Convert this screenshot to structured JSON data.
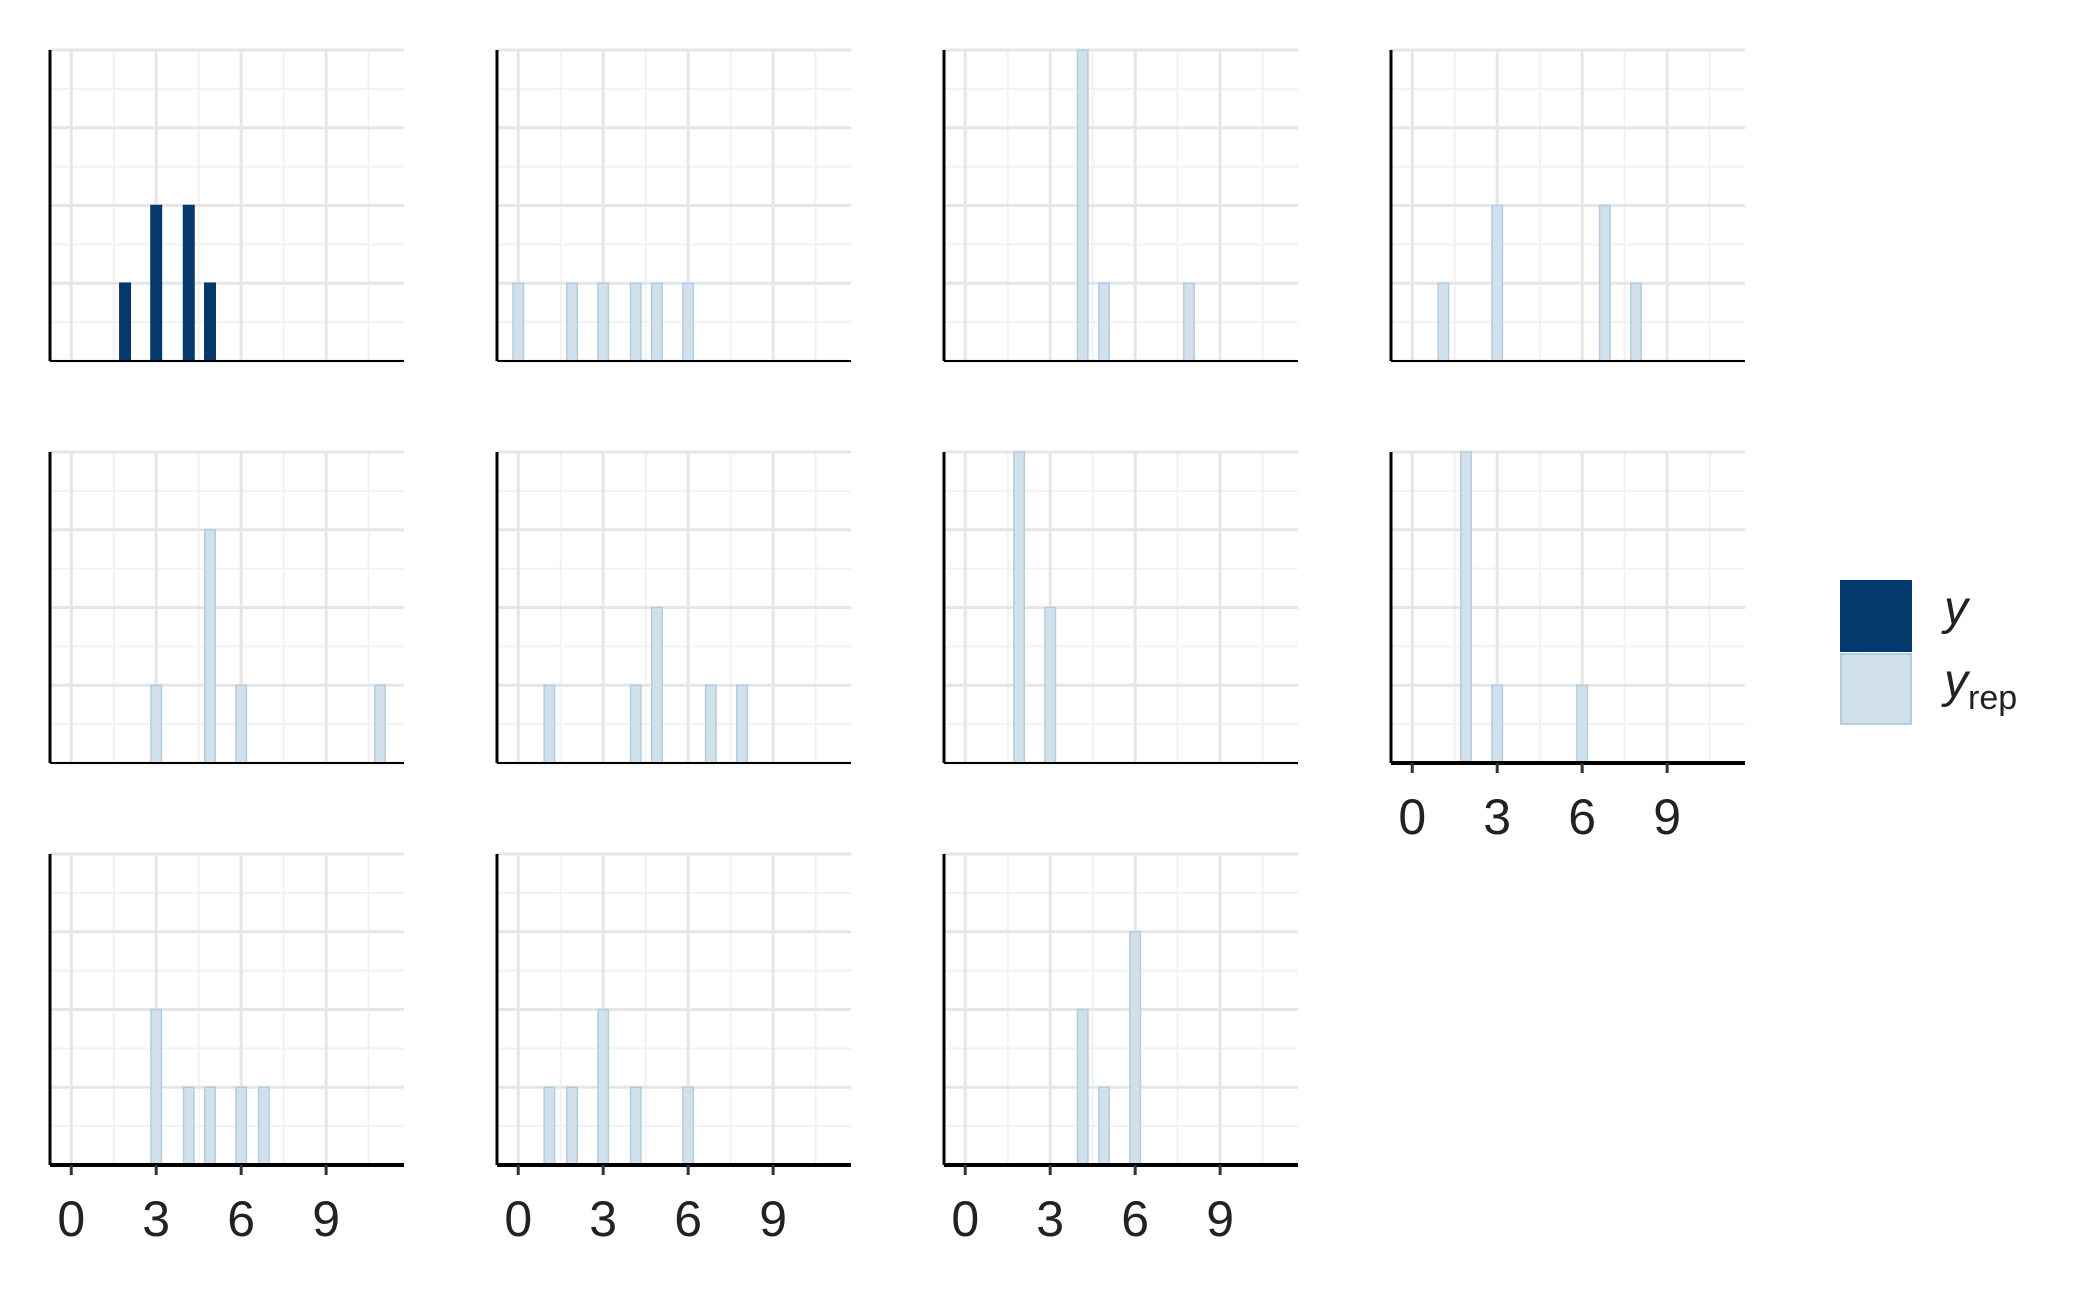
{
  "chart_data": {
    "type": "histogram",
    "xlim": [
      -0.75,
      11.75
    ],
    "xticks": [
      0,
      3,
      6,
      9
    ],
    "ylim": [
      0,
      4
    ],
    "ygrid": [
      0,
      1,
      2,
      3,
      4
    ],
    "series": [
      {
        "name": "y",
        "color": "#03396c",
        "panels": [
          {
            "x": [
              1.9,
              3.0,
              4.15,
              4.9
            ],
            "values": [
              1,
              2,
              2,
              1
            ]
          }
        ]
      },
      {
        "name": "y",
        "subscript": "rep",
        "color": "#d1e1ec",
        "panels": [
          {
            "x": [
              0,
              1.9,
              3.0,
              4.15,
              4.9,
              6.0
            ],
            "values": [
              1,
              1,
              1,
              1,
              1,
              1
            ]
          },
          {
            "x": [
              4.15,
              4.9,
              7.9
            ],
            "values": [
              4,
              1,
              1
            ]
          },
          {
            "x": [
              1.1,
              3.0,
              6.8,
              7.9
            ],
            "values": [
              1,
              2,
              2,
              1
            ]
          },
          {
            "x": [
              3.0,
              4.9,
              6.0,
              10.9
            ],
            "values": [
              1,
              3,
              1,
              1
            ]
          },
          {
            "x": [
              1.1,
              4.15,
              4.9,
              6.8,
              7.9
            ],
            "values": [
              1,
              1,
              2,
              1,
              1
            ]
          },
          {
            "x": [
              1.9,
              3.0
            ],
            "values": [
              4,
              2
            ]
          },
          {
            "x": [
              1.9,
              3.0,
              6.0
            ],
            "values": [
              4,
              1,
              1
            ]
          },
          {
            "x": [
              3.0,
              4.15,
              4.9,
              6.0,
              6.8
            ],
            "values": [
              2,
              1,
              1,
              1,
              1
            ]
          },
          {
            "x": [
              1.1,
              1.9,
              3.0,
              4.15,
              6.0
            ],
            "values": [
              1,
              1,
              2,
              1,
              1
            ]
          },
          {
            "x": [
              4.15,
              4.9,
              6.0
            ],
            "values": [
              2,
              1,
              3
            ]
          }
        ]
      }
    ]
  }
}
